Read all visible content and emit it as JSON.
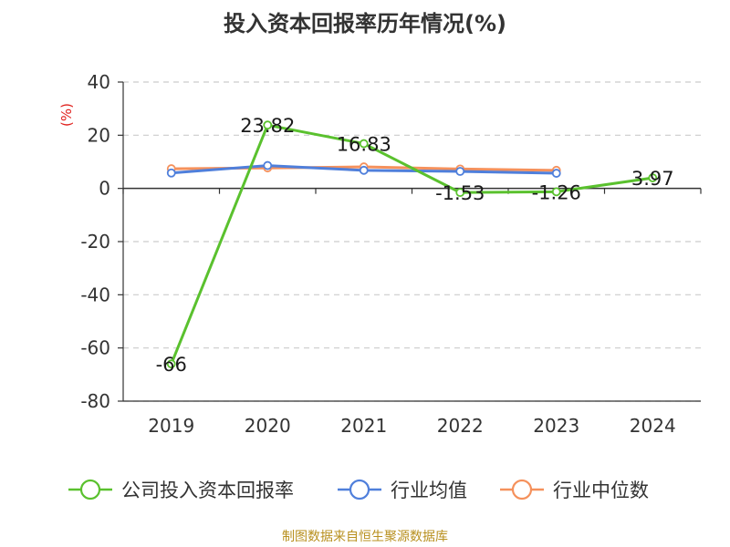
{
  "chart_data": {
    "type": "line",
    "title": "投入资本回报率历年情况(%)",
    "ylabel": "(%)",
    "categories": [
      "2019",
      "2020",
      "2021",
      "2022",
      "2023",
      "2024"
    ],
    "ylim": [
      -80,
      40
    ],
    "yticks": [
      "40",
      "20",
      "0",
      "-20",
      "-40",
      "-60",
      "-80"
    ],
    "grid": true,
    "legend_position": "bottom",
    "series": [
      {
        "name": "公司投入资本回报率",
        "color": "#5ac12e",
        "values": [
          -66,
          23.82,
          16.83,
          -1.53,
          -1.26,
          3.97
        ],
        "labels": [
          "-66",
          "23.82",
          "16.83",
          "-1.53",
          "-1.26",
          "3.97"
        ]
      },
      {
        "name": "行业均值",
        "color": "#4f7fdb",
        "values": [
          5.8,
          8.6,
          6.8,
          6.4,
          5.7,
          null
        ]
      },
      {
        "name": "行业中位数",
        "color": "#f5915c",
        "values": [
          7.4,
          7.7,
          8.1,
          7.3,
          6.8,
          null
        ]
      }
    ]
  },
  "source_note": "制图数据来自恒生聚源数据库",
  "colors": {
    "unit_label": "#e0211d",
    "axis": "#333333",
    "grid": "#cccccc"
  }
}
